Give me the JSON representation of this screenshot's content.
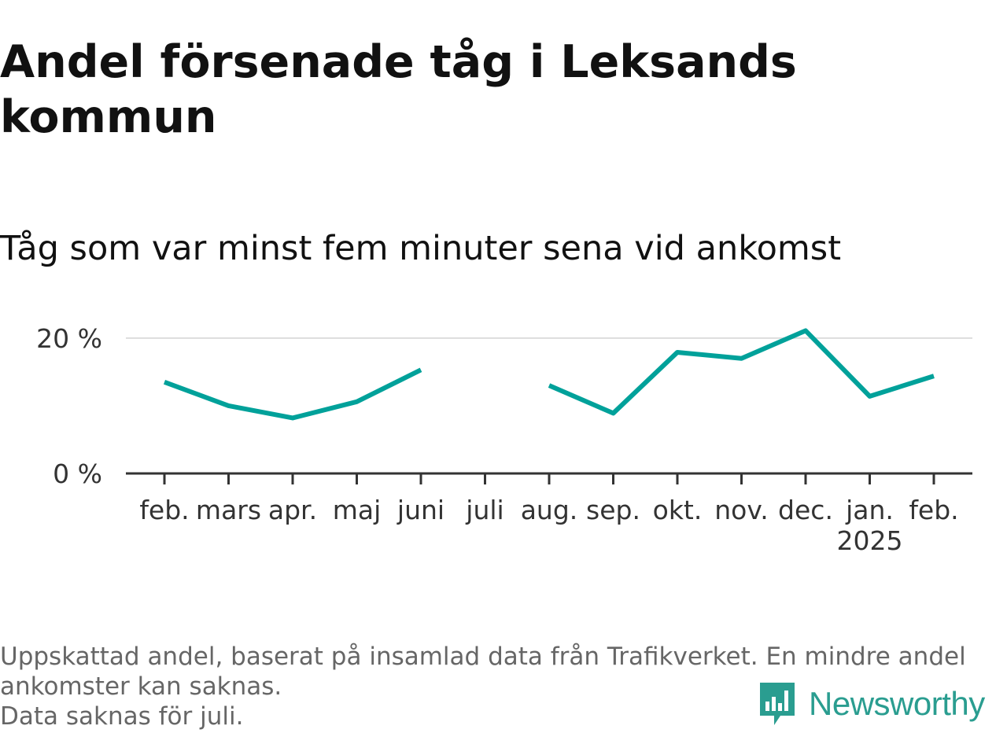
{
  "title": "Andel försenade tåg i Leksands kommun",
  "subtitle": "Tåg som var minst fem minuter sena vid ankomst",
  "chart_data": {
    "type": "line",
    "categories": [
      "feb.",
      "mars",
      "apr.",
      "maj",
      "juni",
      "juli",
      "aug.",
      "sep.",
      "okt.",
      "nov.",
      "dec.",
      "jan.",
      "feb."
    ],
    "year_label": "2025",
    "year_label_index": 11,
    "series": [
      {
        "values": [
          13.5,
          10.0,
          8.2,
          10.6,
          15.3,
          null,
          13.0,
          8.9,
          17.9,
          17.0,
          21.1,
          11.4,
          14.4
        ]
      }
    ],
    "ylim": [
      0,
      21.5
    ],
    "yticks": [
      0,
      20
    ],
    "ytick_labels": [
      "0 %",
      "20 %"
    ],
    "xlabel": "",
    "ylabel": "",
    "grid": true,
    "line_color": "#00a19a"
  },
  "footer": {
    "lines": [
      "Uppskattad andel, baserat på insamlad data från Trafikverket. En mindre andel",
      "ankomster kan saknas.",
      "Data saknas för juli."
    ]
  },
  "logo": {
    "text": "Newsworthy",
    "icon": "newsworthy-logo-icon",
    "color": "#2a9d90"
  }
}
